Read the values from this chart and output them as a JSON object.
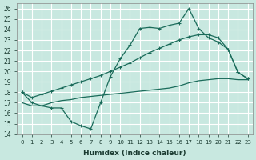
{
  "xlabel": "Humidex (Indice chaleur)",
  "bg_color": "#c8e8e0",
  "grid_color": "#ffffff",
  "line_color": "#1a6b5a",
  "xlim": [
    -0.5,
    23.5
  ],
  "ylim": [
    14,
    26.5
  ],
  "xticks": [
    0,
    1,
    2,
    3,
    4,
    5,
    6,
    7,
    8,
    9,
    10,
    11,
    12,
    13,
    14,
    15,
    16,
    17,
    18,
    19,
    20,
    21,
    22,
    23
  ],
  "yticks": [
    14,
    15,
    16,
    17,
    18,
    19,
    20,
    21,
    22,
    23,
    24,
    25,
    26
  ],
  "line1_y": [
    18,
    17,
    16.7,
    16.5,
    16.5,
    15.2,
    14.8,
    14.5,
    17.0,
    19.5,
    21.2,
    22.5,
    24.1,
    24.2,
    24.1,
    24.4,
    24.6,
    26.0,
    24.1,
    23.2,
    22.8,
    22.1,
    19.9,
    19.3
  ],
  "line2_y": [
    18,
    17.5,
    17.8,
    18.1,
    18.4,
    18.7,
    19.0,
    19.3,
    19.6,
    20.0,
    20.4,
    20.8,
    21.3,
    21.8,
    22.2,
    22.6,
    23.0,
    23.3,
    23.5,
    23.5,
    23.2,
    22.1,
    19.9,
    19.3
  ],
  "line3_y": [
    17,
    16.7,
    16.7,
    17.0,
    17.2,
    17.3,
    17.5,
    17.6,
    17.7,
    17.8,
    17.9,
    18.0,
    18.1,
    18.2,
    18.3,
    18.4,
    18.6,
    18.9,
    19.1,
    19.2,
    19.3,
    19.3,
    19.2,
    19.2
  ]
}
